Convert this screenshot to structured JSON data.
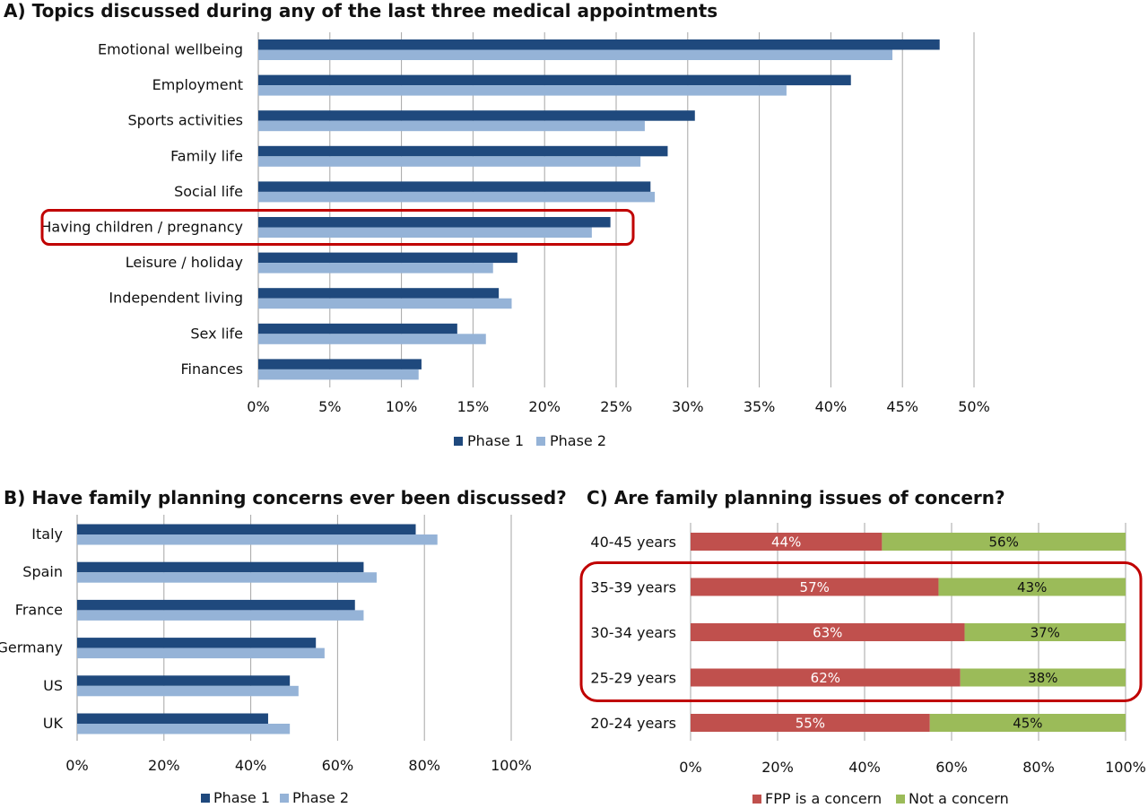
{
  "colors": {
    "phase1": "#1F497D",
    "phase2": "#95B3D7",
    "fpp_concern": "#C0504D",
    "not_concern": "#9BBB59",
    "highlight": "#C00000",
    "grid": "#A6A6A6"
  },
  "chart_data": [
    {
      "id": "A",
      "type": "bar",
      "orientation": "horizontal",
      "title": "A) Topics discussed during any of the last three medical appointments",
      "categories": [
        "Emotional wellbeing",
        "Employment",
        "Sports activities",
        "Family life",
        "Social life",
        "Having children / pregnancy",
        "Leisure / holiday",
        "Independent living",
        "Sex life",
        "Finances"
      ],
      "series": [
        {
          "name": "Phase 1",
          "values": [
            47.6,
            41.4,
            30.5,
            28.6,
            27.4,
            24.6,
            18.1,
            16.8,
            13.9,
            11.4
          ]
        },
        {
          "name": "Phase 2",
          "values": [
            44.3,
            36.9,
            27.0,
            26.7,
            27.7,
            23.3,
            16.4,
            17.7,
            15.9,
            11.2
          ]
        }
      ],
      "xlim": [
        0,
        50
      ],
      "ticks": [
        "0%",
        "5%",
        "10%",
        "15%",
        "20%",
        "25%",
        "30%",
        "35%",
        "40%",
        "45%",
        "50%"
      ],
      "highlighted_category": "Having children / pregnancy",
      "legend_position": "bottom",
      "grid": true
    },
    {
      "id": "B",
      "type": "bar",
      "orientation": "horizontal",
      "title": "B) Have family planning concerns ever been discussed?",
      "categories": [
        "Italy",
        "Spain",
        "France",
        "Germany",
        "US",
        "UK"
      ],
      "series": [
        {
          "name": "Phase 1",
          "values": [
            78,
            66,
            64,
            55,
            49,
            44
          ]
        },
        {
          "name": "Phase 2",
          "values": [
            83,
            69,
            66,
            57,
            51,
            49
          ]
        }
      ],
      "xlim": [
        0,
        100
      ],
      "ticks": [
        "0%",
        "20%",
        "40%",
        "60%",
        "80%",
        "100%"
      ],
      "legend_position": "bottom",
      "grid": true
    },
    {
      "id": "C",
      "type": "bar",
      "orientation": "horizontal",
      "stacked": true,
      "title": "C) Are family planning issues of concern?",
      "categories": [
        "40-45 years",
        "35-39 years",
        "30-34 years",
        "25-29 years",
        "20-24 years"
      ],
      "series": [
        {
          "name": "FPP is a concern",
          "values": [
            44,
            57,
            63,
            62,
            55
          ],
          "labels": [
            "44%",
            "57%",
            "63%",
            "62%",
            "55%"
          ]
        },
        {
          "name": "Not a concern",
          "values": [
            56,
            43,
            37,
            38,
            45
          ],
          "labels": [
            "56%",
            "43%",
            "37%",
            "38%",
            "45%"
          ]
        }
      ],
      "xlim": [
        0,
        100
      ],
      "ticks": [
        "0%",
        "20%",
        "40%",
        "60%",
        "80%",
        "100%"
      ],
      "highlighted_categories": [
        "35-39 years",
        "30-34 years",
        "25-29 years"
      ],
      "legend_position": "bottom",
      "grid": true
    }
  ]
}
